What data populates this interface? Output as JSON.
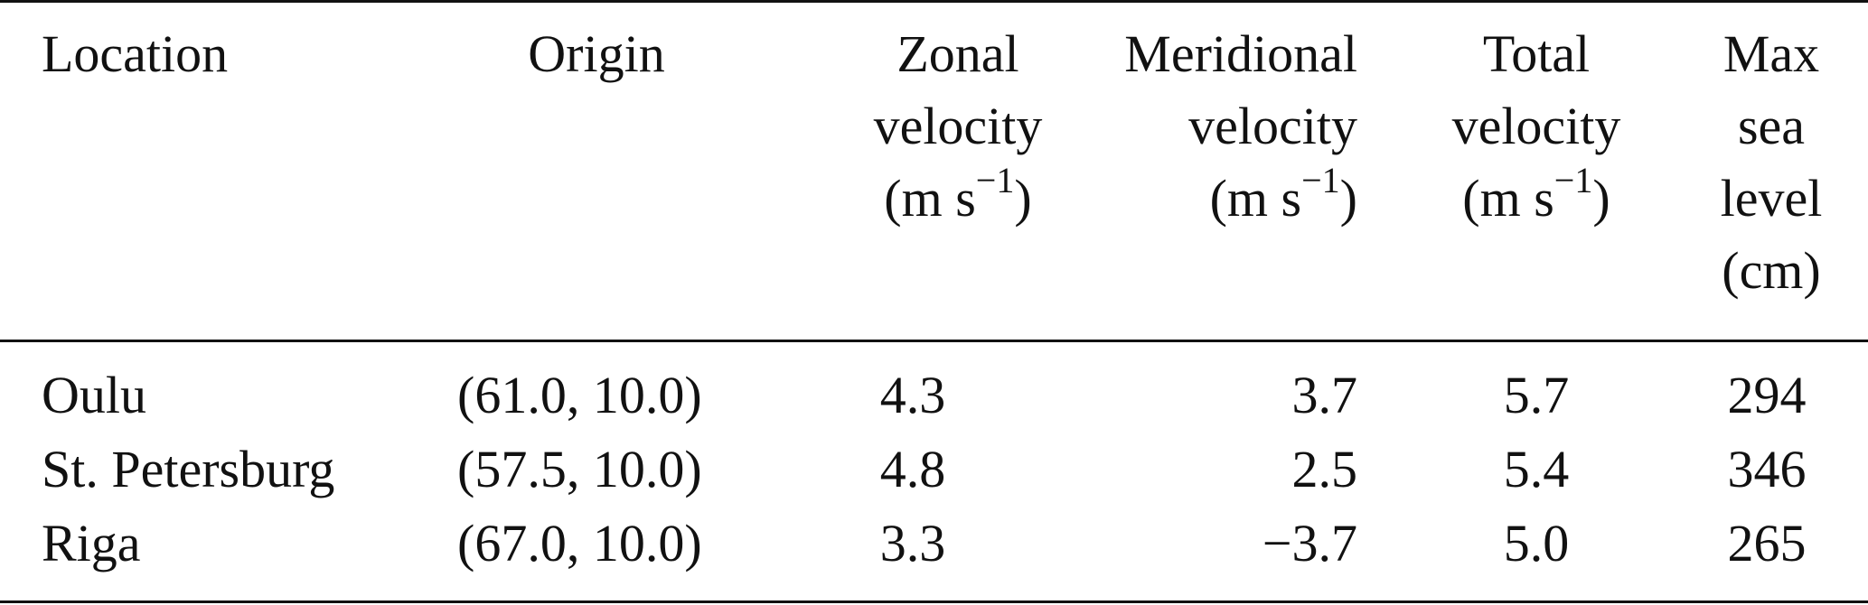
{
  "table": {
    "headers": {
      "location": "Location",
      "origin": "Origin",
      "zonal": [
        "Zonal",
        "velocity",
        "(m s",
        "−1",
        ")"
      ],
      "meridional": [
        "Meridional",
        "velocity",
        "(m s",
        "−1",
        ")"
      ],
      "total": [
        "Total",
        "velocity",
        "(m s",
        "−1",
        ")"
      ],
      "sea_level": [
        "Max",
        "sea",
        "level",
        "(cm)"
      ]
    },
    "rows": [
      {
        "location": "Oulu",
        "origin": "(61.0, 10.0)",
        "zonal": "4.3",
        "meridional": "3.7",
        "total": "5.7",
        "sea_level": "294"
      },
      {
        "location": "St. Petersburg",
        "origin": "(57.5, 10.0)",
        "zonal": "4.8",
        "meridional": "2.5",
        "total": "5.4",
        "sea_level": "346"
      },
      {
        "location": "Riga",
        "origin": "(67.0, 10.0)",
        "zonal": "3.3",
        "meridional": "−3.7",
        "total": "5.0",
        "sea_level": "265"
      }
    ]
  }
}
